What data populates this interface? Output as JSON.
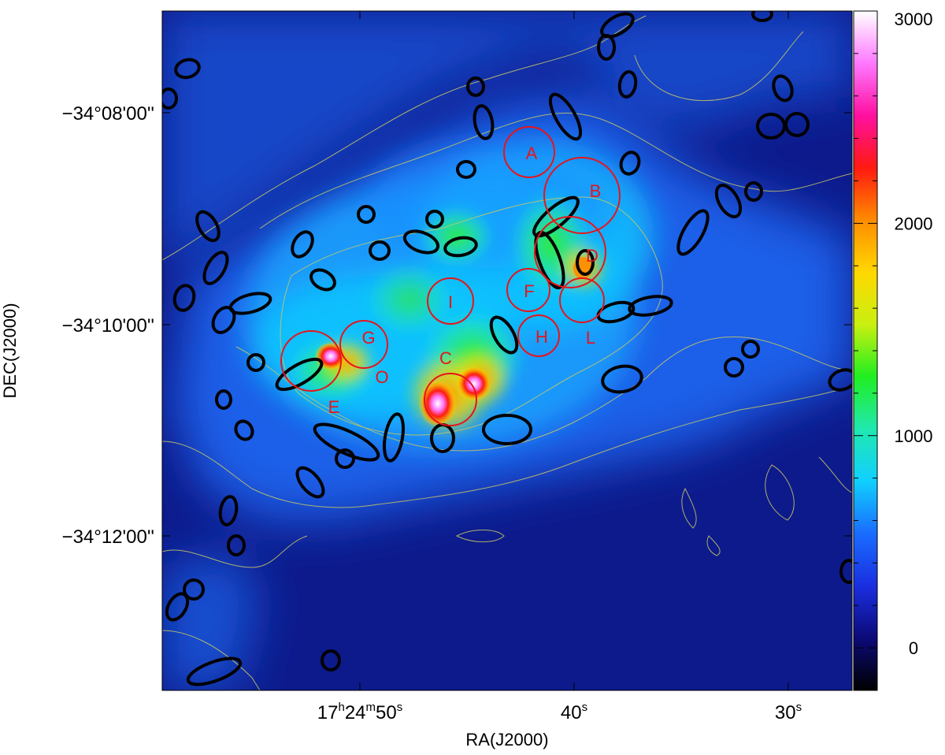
{
  "chart_data": {
    "type": "heatmap",
    "xlabel": "RA(J2000)",
    "ylabel": "DEC(J2000)",
    "x_axis": {
      "ticks": [
        {
          "h": "17",
          "m": "24",
          "s": "50",
          "full": true
        },
        {
          "s": "40",
          "full": false
        },
        {
          "s": "30",
          "full": false
        }
      ]
    },
    "y_axis": {
      "ticks": [
        "−34°08'00''",
        "−34°10'00''",
        "−34°12'00''"
      ]
    },
    "colorbar": {
      "range": [
        -200,
        3000
      ],
      "ticks": [
        "0",
        "1000",
        "2000",
        "3000"
      ],
      "colors": [
        "#000000",
        "#0c0a78",
        "#1a2fe0",
        "#1a6cff",
        "#10d0ff",
        "#20e8b0",
        "#20ee20",
        "#c8f010",
        "#ffd800",
        "#ff8c00",
        "#ff1a10",
        "#ff10a0",
        "#ff78ff",
        "#ffffff"
      ]
    },
    "regions": [
      {
        "label": "A",
        "color": "#e8141a"
      },
      {
        "label": "B",
        "color": "#e8141a"
      },
      {
        "label": "C",
        "color": "#e8141a"
      },
      {
        "label": "D",
        "color": "#e8141a"
      },
      {
        "label": "E",
        "color": "#e8141a"
      },
      {
        "label": "F",
        "color": "#e8141a"
      },
      {
        "label": "G",
        "color": "#e8141a"
      },
      {
        "label": "H",
        "color": "#e8141a"
      },
      {
        "label": "I",
        "color": "#e8141a"
      },
      {
        "label": "L",
        "color": "#e8141a"
      },
      {
        "label": "O",
        "color": "#e8141a"
      }
    ],
    "colors": {
      "background_low": "#0d1a8c",
      "contour": "#c8c864",
      "ellipse": "#000000",
      "region": "#e8141a"
    }
  }
}
